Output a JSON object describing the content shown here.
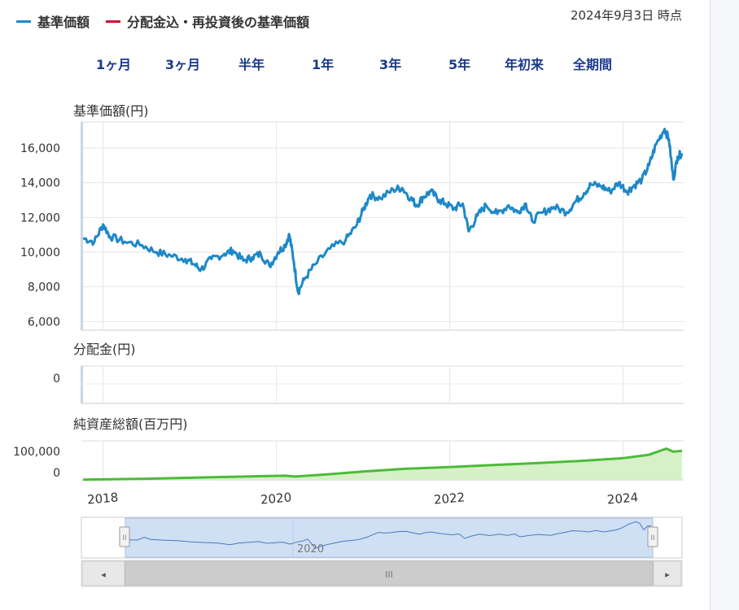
{
  "legend": {
    "items": [
      {
        "label": "基準価額",
        "color": "#1e88c8"
      },
      {
        "label": "分配金込・再投資後の基準価額",
        "color": "#c8102e"
      }
    ]
  },
  "as_of": "2024年9月3日 時点",
  "period_buttons": [
    "1ヶ月",
    "3ヶ月",
    "半年",
    "1年",
    "3年",
    "5年",
    "年初来",
    "全期間"
  ],
  "scroll_controls": {
    "left_arrow": "◂",
    "right_arrow": "▸",
    "thumb_grip": "III",
    "handle_grip": "II"
  },
  "chart_data": [
    {
      "type": "line",
      "title": "基準価額(円)",
      "color": "#1e88c8",
      "yticks": [
        "6,000",
        "8,000",
        "10,000",
        "12,000",
        "14,000",
        "16,000"
      ],
      "ylim": [
        5500,
        17500
      ],
      "xlim": [
        2017.75,
        2024.7
      ],
      "x_tick_labels": [
        "2018",
        "2020",
        "2022",
        "2024"
      ],
      "series": [
        {
          "values": [
            [
              2017.77,
              10800
            ],
            [
              2017.9,
              10600
            ],
            [
              2018.0,
              11600
            ],
            [
              2018.08,
              10900
            ],
            [
              2018.25,
              10600
            ],
            [
              2018.45,
              10400
            ],
            [
              2018.62,
              10000
            ],
            [
              2018.78,
              9800
            ],
            [
              2018.95,
              9600
            ],
            [
              2019.05,
              9300
            ],
            [
              2019.13,
              9000
            ],
            [
              2019.25,
              9600
            ],
            [
              2019.4,
              9900
            ],
            [
              2019.5,
              10100
            ],
            [
              2019.62,
              9500
            ],
            [
              2019.72,
              9700
            ],
            [
              2019.82,
              9900
            ],
            [
              2019.92,
              9200
            ],
            [
              2020.02,
              10000
            ],
            [
              2020.1,
              10400
            ],
            [
              2020.15,
              11000
            ],
            [
              2020.2,
              9500
            ],
            [
              2020.25,
              7700
            ],
            [
              2020.33,
              8500
            ],
            [
              2020.45,
              9300
            ],
            [
              2020.62,
              10200
            ],
            [
              2020.8,
              10700
            ],
            [
              2020.92,
              11500
            ],
            [
              2021.0,
              12400
            ],
            [
              2021.08,
              13300
            ],
            [
              2021.2,
              13100
            ],
            [
              2021.35,
              13600
            ],
            [
              2021.45,
              13700
            ],
            [
              2021.55,
              13100
            ],
            [
              2021.62,
              12700
            ],
            [
              2021.7,
              13200
            ],
            [
              2021.78,
              13500
            ],
            [
              2021.88,
              13000
            ],
            [
              2021.95,
              12800
            ],
            [
              2022.05,
              12500
            ],
            [
              2022.15,
              12800
            ],
            [
              2022.22,
              11200
            ],
            [
              2022.32,
              12100
            ],
            [
              2022.42,
              12700
            ],
            [
              2022.55,
              12200
            ],
            [
              2022.68,
              12700
            ],
            [
              2022.78,
              12300
            ],
            [
              2022.88,
              12800
            ],
            [
              2022.95,
              11800
            ],
            [
              2023.08,
              12300
            ],
            [
              2023.2,
              12600
            ],
            [
              2023.35,
              12300
            ],
            [
              2023.45,
              12900
            ],
            [
              2023.55,
              13400
            ],
            [
              2023.63,
              13900
            ],
            [
              2023.75,
              13800
            ],
            [
              2023.85,
              13500
            ],
            [
              2023.95,
              14000
            ],
            [
              2024.05,
              13500
            ],
            [
              2024.12,
              13800
            ],
            [
              2024.22,
              14200
            ],
            [
              2024.3,
              15000
            ],
            [
              2024.38,
              16200
            ],
            [
              2024.48,
              17100
            ],
            [
              2024.53,
              16500
            ],
            [
              2024.58,
              14200
            ],
            [
              2024.63,
              15500
            ],
            [
              2024.68,
              15700
            ]
          ]
        }
      ]
    },
    {
      "type": "bar",
      "title": "分配金(円)",
      "yticks": [
        "0"
      ],
      "values": []
    },
    {
      "type": "area",
      "title": "純資産総額(百万円)",
      "color": "#4cbb3a",
      "fill": "#d6f0c8",
      "yticks": [
        "0",
        "100,000"
      ],
      "ylim": [
        0,
        140000
      ],
      "series": [
        {
          "values": [
            [
              2017.77,
              500
            ],
            [
              2018.5,
              4000
            ],
            [
              2019.2,
              9000
            ],
            [
              2019.8,
              13000
            ],
            [
              2020.1,
              15000
            ],
            [
              2020.22,
              12000
            ],
            [
              2020.6,
              20000
            ],
            [
              2021.0,
              30000
            ],
            [
              2021.5,
              40000
            ],
            [
              2022.0,
              46000
            ],
            [
              2022.5,
              53000
            ],
            [
              2023.0,
              60000
            ],
            [
              2023.5,
              68000
            ],
            [
              2024.0,
              78000
            ],
            [
              2024.3,
              90000
            ],
            [
              2024.5,
              112000
            ],
            [
              2024.58,
              101000
            ],
            [
              2024.68,
              104000
            ]
          ]
        }
      ]
    }
  ],
  "x_axis_labels": [
    "2018",
    "2020",
    "2022",
    "2024"
  ],
  "navigator": {
    "label": "2020"
  }
}
